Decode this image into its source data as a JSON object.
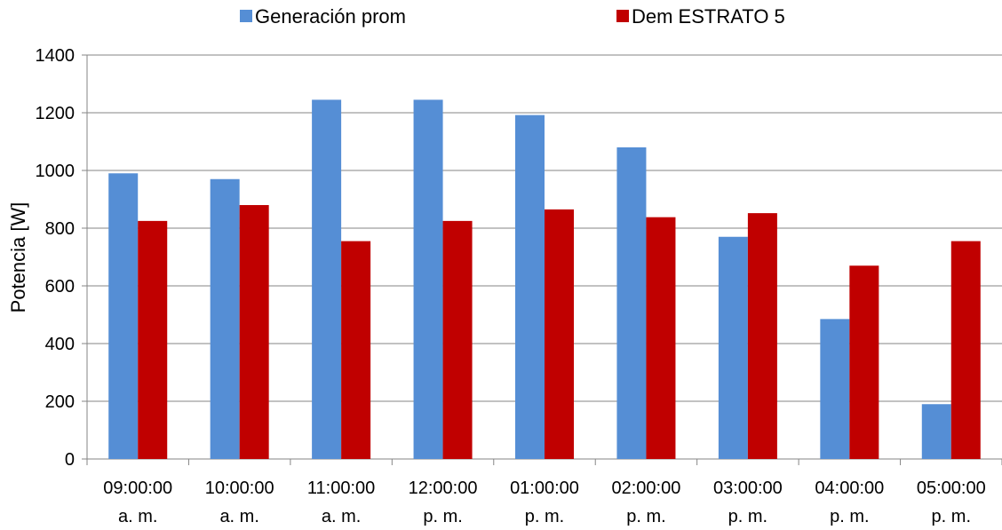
{
  "chart_data": {
    "type": "bar",
    "categories": [
      [
        "09:00:00",
        "a. m."
      ],
      [
        "10:00:00",
        "a. m."
      ],
      [
        "11:00:00",
        "a. m."
      ],
      [
        "12:00:00",
        "p. m."
      ],
      [
        "01:00:00",
        "p. m."
      ],
      [
        "02:00:00",
        "p. m."
      ],
      [
        "03:00:00",
        "p. m."
      ],
      [
        "04:00:00",
        "p. m."
      ],
      [
        "05:00:00",
        "p. m."
      ]
    ],
    "series": [
      {
        "name": "Generación prom",
        "color": "#558ED5",
        "values": [
          990,
          970,
          1245,
          1245,
          1192,
          1080,
          770,
          485,
          190
        ]
      },
      {
        "name": "Dem ESTRATO 5",
        "color": "#C00000",
        "values": [
          825,
          880,
          755,
          825,
          865,
          838,
          852,
          670,
          755
        ]
      }
    ],
    "ylabel": "Potencia [W]",
    "ylim": [
      0,
      1400
    ],
    "yticks": [
      "0",
      "200",
      "400",
      "600",
      "800",
      "1000",
      "1200",
      "1400"
    ],
    "grid": true,
    "legend_position": "top"
  }
}
